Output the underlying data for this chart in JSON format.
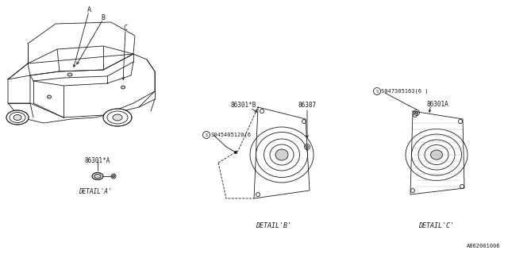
{
  "bg_color": "#ffffff",
  "line_color": "#1a1a1a",
  "diagram_code": "A862001006",
  "car_labels": [
    "A",
    "B",
    "C"
  ],
  "detail_a_label": "86301*A",
  "detail_a_caption": "DETAIL'A'",
  "detail_b_label1": "86301*B",
  "detail_b_label2": "86387",
  "detail_b_screw": "S045405120(6",
  "detail_b_caption": "DETAIL'B'",
  "detail_c_label": "86301A",
  "detail_c_screw": "S047305163(6 )",
  "detail_c_caption": "DETAIL'C'"
}
